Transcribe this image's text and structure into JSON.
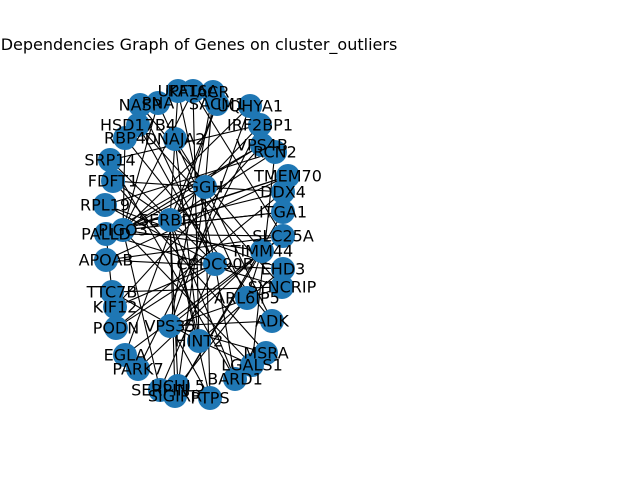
{
  "title": "Dependencies Graph of Genes on cluster_outliers",
  "colors": {
    "node": "#1f77b4",
    "edge": "#000000",
    "background": "#ffffff"
  },
  "nodes": [
    {
      "id": "UPF1",
      "label": "UPF1"
    },
    {
      "id": "KAT6A",
      "label": "KAT6A"
    },
    {
      "id": "ACR",
      "label": "ACR"
    },
    {
      "id": "NASP",
      "label": "NASP"
    },
    {
      "id": "PNA",
      "label": "PNA"
    },
    {
      "id": "SACM1",
      "label": "SACM1"
    },
    {
      "id": "UQHYA1",
      "label": "UQHYA1"
    },
    {
      "id": "HSD17B4",
      "label": "HSD17B4"
    },
    {
      "id": "IRF2BP1",
      "label": "IRF2BP1"
    },
    {
      "id": "RBP4",
      "label": "RBP4"
    },
    {
      "id": "DNAJA2",
      "label": "DNAJA2"
    },
    {
      "id": "VPS4B",
      "label": "VPS4B"
    },
    {
      "id": "RCN2",
      "label": "RCN2"
    },
    {
      "id": "SRP14",
      "label": "SRP14"
    },
    {
      "id": "TMEM70",
      "label": "TMEM70"
    },
    {
      "id": "FDFT1",
      "label": "FDFT1"
    },
    {
      "id": "GGH",
      "label": "GGH"
    },
    {
      "id": "DDX4",
      "label": "DDX4"
    },
    {
      "id": "RPL19",
      "label": "RPL19"
    },
    {
      "id": "ITGA1",
      "label": "ITGA1"
    },
    {
      "id": "SERBP1",
      "label": "SERBP1"
    },
    {
      "id": "PALLD",
      "label": "PALLD"
    },
    {
      "id": "PIGO3",
      "label": "PIGO3"
    },
    {
      "id": "SLC25A",
      "label": "SLC25A"
    },
    {
      "id": "TIMM44",
      "label": "TIMM44"
    },
    {
      "id": "APOAB",
      "label": "APOAB"
    },
    {
      "id": "CCDC90B",
      "label": "CCDC90B"
    },
    {
      "id": "EHD3",
      "label": "EHD3"
    },
    {
      "id": "SYNCRIP",
      "label": "SYNCRIP"
    },
    {
      "id": "TTC7B",
      "label": "TTC7B"
    },
    {
      "id": "ARL6IP5",
      "label": "ARL6IP5"
    },
    {
      "id": "KIF12",
      "label": "KIF12"
    },
    {
      "id": "ADK",
      "label": "ADK"
    },
    {
      "id": "PODN",
      "label": "PODN"
    },
    {
      "id": "VPS35",
      "label": "VPS35"
    },
    {
      "id": "HINT2",
      "label": "HINT2"
    },
    {
      "id": "EGLA",
      "label": "EGLA"
    },
    {
      "id": "MSRA",
      "label": "MSRA"
    },
    {
      "id": "PARK7",
      "label": "PARK7"
    },
    {
      "id": "LGALS1",
      "label": "LGALS1"
    },
    {
      "id": "BARD1",
      "label": "BARD1"
    },
    {
      "id": "SERPIN",
      "label": "SERPIN"
    },
    {
      "id": "UCHL5",
      "label": "UCHL5"
    },
    {
      "id": "PTPS",
      "label": "PTPS"
    },
    {
      "id": "SIGIRR",
      "label": "SIGIRR"
    }
  ],
  "edges": [
    [
      "UPF1",
      "SERBP1"
    ],
    [
      "UPF1",
      "CCDC90B"
    ],
    [
      "KAT6A",
      "PIGO3"
    ],
    [
      "KAT6A",
      "HINT2"
    ],
    [
      "ACR",
      "GGH"
    ],
    [
      "ACR",
      "VPS35"
    ],
    [
      "NASP",
      "CCDC90B"
    ],
    [
      "NASP",
      "TIMM44"
    ],
    [
      "PNA",
      "PIGO3"
    ],
    [
      "PNA",
      "ARL6IP5"
    ],
    [
      "SACM1",
      "SERBP1"
    ],
    [
      "SACM1",
      "EGLA"
    ],
    [
      "UQHYA1",
      "PIGO3"
    ],
    [
      "UQHYA1",
      "VPS35"
    ],
    [
      "HSD17B4",
      "CCDC90B"
    ],
    [
      "HSD17B4",
      "SYNCRIP"
    ],
    [
      "IRF2BP1",
      "SERBP1"
    ],
    [
      "IRF2BP1",
      "PARK7"
    ],
    [
      "RBP4",
      "PIGO3"
    ],
    [
      "RBP4",
      "ADK"
    ],
    [
      "DNAJA2",
      "GGH"
    ],
    [
      "DNAJA2",
      "HINT2"
    ],
    [
      "VPS4B",
      "PIGO3"
    ],
    [
      "VPS4B",
      "KIF12"
    ],
    [
      "RCN2",
      "SERBP1"
    ],
    [
      "RCN2",
      "LGALS1"
    ],
    [
      "SRP14",
      "CCDC90B"
    ],
    [
      "SRP14",
      "BARD1"
    ],
    [
      "TMEM70",
      "PIGO3"
    ],
    [
      "TMEM70",
      "APOAB"
    ],
    [
      "FDFT1",
      "SERBP1"
    ],
    [
      "FDFT1",
      "MSRA"
    ],
    [
      "GGH",
      "UCHL5"
    ],
    [
      "GGH",
      "PIGO3"
    ],
    [
      "DDX4",
      "SERBP1"
    ],
    [
      "DDX4",
      "PODN"
    ],
    [
      "RPL19",
      "CCDC90B"
    ],
    [
      "RPL19",
      "EHD3"
    ],
    [
      "ITGA1",
      "PIGO3"
    ],
    [
      "ITGA1",
      "SIGIRR"
    ],
    [
      "SERBP1",
      "PTPS"
    ],
    [
      "SERBP1",
      "HINT2"
    ],
    [
      "PALLD",
      "SLC25A"
    ],
    [
      "PALLD",
      "TTC7B"
    ],
    [
      "PIGO3",
      "SERPIN"
    ],
    [
      "PIGO3",
      "TIMM44"
    ],
    [
      "SLC25A",
      "VPS35"
    ],
    [
      "SLC25A",
      "APOAB"
    ],
    [
      "TIMM44",
      "ARL6IP5"
    ],
    [
      "TIMM44",
      "SIGIRR"
    ],
    [
      "CCDC90B",
      "PODN"
    ],
    [
      "CCDC90B",
      "BARD1"
    ],
    [
      "EHD3",
      "HINT2"
    ],
    [
      "EHD3",
      "APOAB"
    ],
    [
      "SYNCRIP",
      "VPS35"
    ],
    [
      "SYNCRIP",
      "PALLD"
    ],
    [
      "TTC7B",
      "HINT2"
    ],
    [
      "ARL6IP5",
      "UCHL5"
    ],
    [
      "KIF12",
      "CCDC90B"
    ],
    [
      "ADK",
      "VPS35"
    ],
    [
      "ADK",
      "GGH"
    ],
    [
      "VPS35",
      "PTPS"
    ],
    [
      "HINT2",
      "LGALS1"
    ],
    [
      "EGLA",
      "SLC25A"
    ],
    [
      "MSRA",
      "VPS35"
    ],
    [
      "PARK7",
      "TIMM44"
    ],
    [
      "LGALS1",
      "PIGO3"
    ],
    [
      "BARD1",
      "SERBP1"
    ],
    [
      "SERPIN",
      "CCDC90B"
    ],
    [
      "UCHL5",
      "SERBP1"
    ],
    [
      "PTPS",
      "GGH"
    ],
    [
      "SIGIRR",
      "SERBP1"
    ],
    [
      "RCN2",
      "RPL19"
    ],
    [
      "TMEM70",
      "PALLD"
    ],
    [
      "DDX4",
      "FDFT1"
    ],
    [
      "IRF2BP1",
      "SRP14"
    ],
    [
      "SYNCRIP",
      "TTC7B"
    ],
    [
      "ITGA1",
      "PIGO3"
    ],
    [
      "VPS4B",
      "PALLD"
    ],
    [
      "KAT6A",
      "SLC25A"
    ]
  ]
}
